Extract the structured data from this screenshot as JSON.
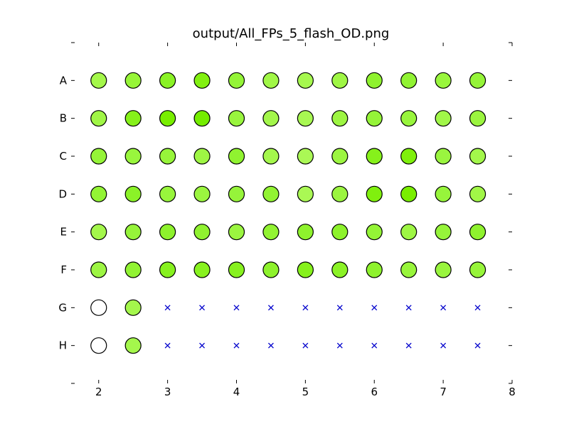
{
  "chart_data": {
    "type": "scatter",
    "title": "output/All_FPs_5_flash_OD.png",
    "xlabel": "",
    "ylabel": "",
    "xlim": [
      1.6,
      8.0
    ],
    "x_ticks": [
      2,
      3,
      4,
      5,
      6,
      7,
      8
    ],
    "x_tick_labels": [
      "2",
      "3",
      "4",
      "5",
      "6",
      "7",
      "8"
    ],
    "y_tick_labels": [
      "A",
      "B",
      "C",
      "D",
      "E",
      "F",
      "G",
      "H"
    ],
    "grid": false,
    "x": [
      2,
      2.5,
      3,
      3.5,
      4,
      4.5,
      5,
      5.5,
      6,
      6.5,
      7,
      7.5
    ],
    "rows": [
      {
        "label": "A",
        "wells": [
          "#a4f74a",
          "#97f538",
          "#8af225",
          "#82f011",
          "#94f437",
          "#a1f747",
          "#a6f84f",
          "#9ff645",
          "#8ff22f",
          "#91f333",
          "#99f63d",
          "#95f438"
        ]
      },
      {
        "label": "B",
        "wells": [
          "#a0f646",
          "#86f11a",
          "#78ee00",
          "#74ed00",
          "#99f53e",
          "#a3f64b",
          "#a8f852",
          "#9df542",
          "#95f438",
          "#98f53c",
          "#a1f749",
          "#9bf53f"
        ]
      },
      {
        "label": "C",
        "wells": [
          "#95f438",
          "#99f63d",
          "#97f53a",
          "#9ef644",
          "#90f330",
          "#a4f74c",
          "#aaf855",
          "#9cf541",
          "#86f11b",
          "#7ff00c",
          "#9af53f",
          "#a3f74b"
        ]
      },
      {
        "label": "D",
        "wells": [
          "#93f435",
          "#8bf228",
          "#98f53c",
          "#9bf53f",
          "#96f43a",
          "#92f333",
          "#aaf854",
          "#9bf540",
          "#80f00e",
          "#79ee00",
          "#97f53b",
          "#a1f647"
        ]
      },
      {
        "label": "E",
        "wells": [
          "#a4f74c",
          "#96f43a",
          "#8ef22d",
          "#90f230",
          "#9bf540",
          "#92f332",
          "#8ef22d",
          "#8df22b",
          "#94f436",
          "#9ef644",
          "#96f43a",
          "#8ff22e"
        ]
      },
      {
        "label": "F",
        "wells": [
          "#9df543",
          "#91f333",
          "#87f11f",
          "#88f220",
          "#87f11f",
          "#8ef22d",
          "#86f11c",
          "#8bf226",
          "#8ef22d",
          "#98f53b",
          "#99f53e",
          "#97f53a"
        ]
      },
      {
        "label": "G",
        "wells": [
          "#ffffff",
          "#a4f74c",
          "x",
          "x",
          "x",
          "x",
          "x",
          "x",
          "x",
          "x",
          "x",
          "x"
        ]
      },
      {
        "label": "H",
        "wells": [
          "#ffffff",
          "#a4f74c",
          "x",
          "x",
          "x",
          "x",
          "x",
          "x",
          "x",
          "x",
          "x",
          "x"
        ]
      }
    ],
    "missing_marker_color": "#0000cc"
  }
}
